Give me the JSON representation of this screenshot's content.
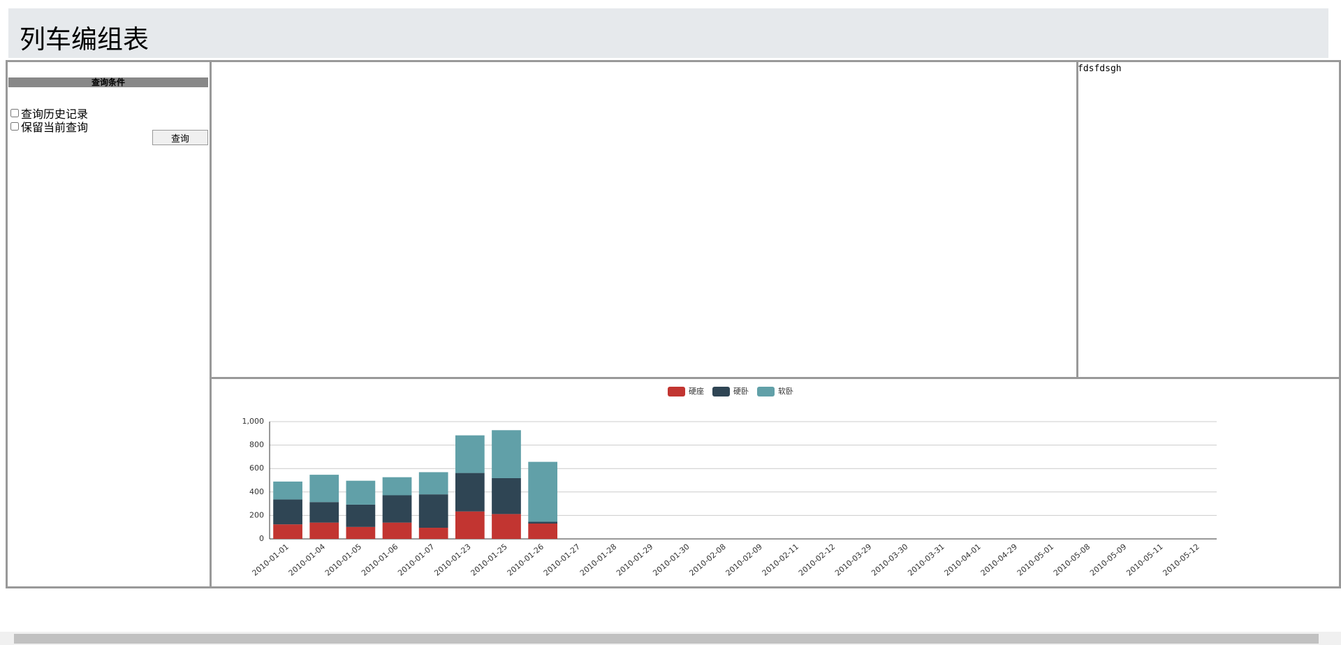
{
  "header": {
    "title": "列车编组表"
  },
  "sidebar": {
    "heading": "查询条件",
    "options": [
      "查询历史记录",
      "保留当前查询"
    ],
    "button": "查询"
  },
  "side_panel": {
    "text": "fdsfdsgh"
  },
  "chart_data": {
    "type": "bar",
    "stacked": true,
    "categories": [
      "2010-01-01",
      "2010-01-04",
      "2010-01-05",
      "2010-01-06",
      "2010-01-07",
      "2010-01-23",
      "2010-01-25",
      "2010-01-26",
      "2010-01-27",
      "2010-01-28",
      "2010-01-29",
      "2010-01-30",
      "2010-02-08",
      "2010-02-09",
      "2010-02-11",
      "2010-02-12",
      "2010-03-29",
      "2010-03-30",
      "2010-03-31",
      "2010-04-01",
      "2010-04-29",
      "2010-05-01",
      "2010-05-08",
      "2010-05-09",
      "2010-05-11",
      "2010-05-12"
    ],
    "series": [
      {
        "name": "硬座",
        "color": "#c23531",
        "values": [
          124,
          139,
          102,
          139,
          95,
          234,
          212,
          131,
          null,
          null,
          null,
          null,
          null,
          null,
          null,
          null,
          null,
          null,
          null,
          null,
          null,
          null,
          null,
          null,
          null,
          null
        ]
      },
      {
        "name": "硬卧",
        "color": "#2f4554",
        "values": [
          212,
          175,
          190,
          233,
          285,
          328,
          306,
          15,
          null,
          null,
          null,
          null,
          null,
          null,
          null,
          null,
          null,
          null,
          null,
          null,
          null,
          null,
          null,
          null,
          null,
          null
        ]
      },
      {
        "name": "软卧",
        "color": "#61a0a8",
        "values": [
          153,
          233,
          204,
          154,
          189,
          321,
          409,
          511,
          null,
          null,
          null,
          null,
          null,
          null,
          null,
          null,
          null,
          null,
          null,
          null,
          null,
          null,
          null,
          null,
          null,
          null
        ]
      }
    ],
    "ylim": [
      0,
      1000
    ],
    "yticks": [
      0,
      200,
      400,
      600,
      800,
      {
        "value": 1000,
        "label": "1,000"
      }
    ],
    "grid": true,
    "legend": "top"
  }
}
